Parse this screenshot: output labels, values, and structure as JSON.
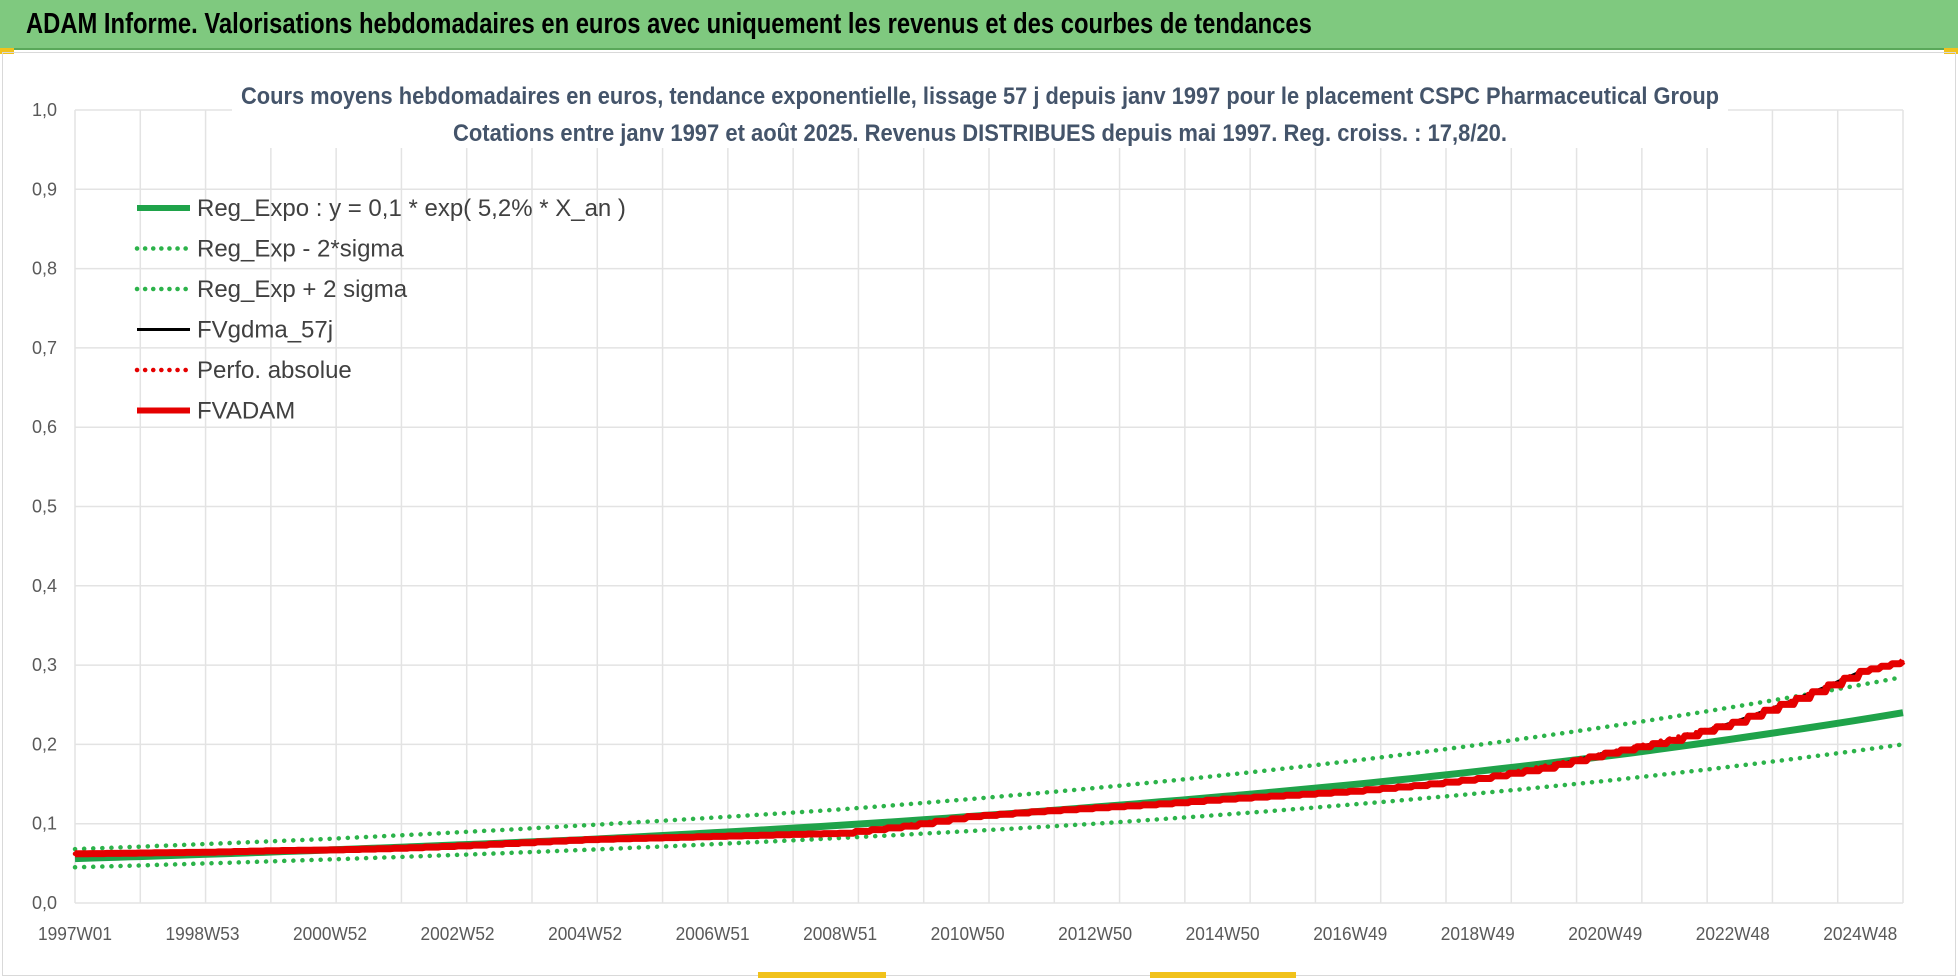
{
  "banner": {
    "title": "ADAM Informe. Valorisations hebdomadaires en euros avec uniquement les revenus et des courbes de tendances"
  },
  "colors": {
    "banner_bg": "#7fc97f",
    "reg_green": "#1fa34a",
    "band_green": "#2cb34a",
    "fv_black": "#000000",
    "adam_red": "#e50000",
    "grid": "#e3e3e3"
  },
  "chart_data": {
    "type": "line",
    "title_lines": [
      "Cours moyens hebdomadaires en euros, tendance exponentielle, lissage 57 j depuis janv 1997  pour le placement CSPC Pharmaceutical Group",
      "Cotations entre janv 1997 et août 2025.  Revenus DISTRIBUES depuis mai 1997. Reg. croiss. : 17,8/20."
    ],
    "ylim": [
      0,
      1.0
    ],
    "xlim": [
      1997.0,
      2025.67
    ],
    "y_ticks": [
      "0,0",
      "0,1",
      "0,2",
      "0,3",
      "0,4",
      "0,5",
      "0,6",
      "0,7",
      "0,8",
      "0,9",
      "1,0"
    ],
    "x_ticks": [
      {
        "label": "1997W01",
        "x": 1997.0
      },
      {
        "label": "1998W53",
        "x": 1999.0
      },
      {
        "label": "2000W52",
        "x": 2001.0
      },
      {
        "label": "2002W52",
        "x": 2003.0
      },
      {
        "label": "2004W52",
        "x": 2005.0
      },
      {
        "label": "2006W51",
        "x": 2007.0
      },
      {
        "label": "2008W51",
        "x": 2009.0
      },
      {
        "label": "2010W50",
        "x": 2011.0
      },
      {
        "label": "2012W50",
        "x": 2013.0
      },
      {
        "label": "2014W50",
        "x": 2015.0
      },
      {
        "label": "2016W49",
        "x": 2017.0
      },
      {
        "label": "2018W49",
        "x": 2019.0
      },
      {
        "label": "2020W49",
        "x": 2021.0
      },
      {
        "label": "2022W48",
        "x": 2023.0
      },
      {
        "label": "2024W48",
        "x": 2025.0
      }
    ],
    "legend_position": "top-left",
    "series": [
      {
        "name": "Reg_Expo : y = 0,1 * exp( 5,2% *  X_an )",
        "style": "solid-thick",
        "color": "#1fa34a",
        "x": [
          1997.0,
          2001.0,
          2005.0,
          2009.0,
          2013.0,
          2017.0,
          2021.0,
          2025.67
        ],
        "y": [
          0.056,
          0.067,
          0.08,
          0.098,
          0.121,
          0.149,
          0.185,
          0.24
        ]
      },
      {
        "name": "Reg_Exp - 2*sigma",
        "style": "dotted",
        "color": "#2cb34a",
        "x": [
          1997.0,
          2001.0,
          2005.0,
          2009.0,
          2013.0,
          2017.0,
          2021.0,
          2025.67
        ],
        "y": [
          0.045,
          0.055,
          0.067,
          0.082,
          0.1,
          0.124,
          0.154,
          0.2
        ]
      },
      {
        "name": "Reg_Exp + 2 sigma",
        "style": "dotted",
        "color": "#2cb34a",
        "x": [
          1997.0,
          2001.0,
          2005.0,
          2009.0,
          2013.0,
          2017.0,
          2021.0,
          2025.67
        ],
        "y": [
          0.068,
          0.081,
          0.098,
          0.118,
          0.145,
          0.179,
          0.222,
          0.285
        ]
      },
      {
        "name": "FVgdma_57j",
        "style": "solid-thin",
        "color": "#000000",
        "x": [
          1997.0,
          1999.0,
          2001.0,
          2003.0,
          2005.0,
          2007.0,
          2009.0,
          2010.0,
          2011.0,
          2013.0,
          2015.0,
          2017.0,
          2019.0,
          2020.0,
          2021.0,
          2022.0,
          2023.0,
          2024.0,
          2025.0,
          2025.67
        ],
        "y": [
          0.062,
          0.064,
          0.067,
          0.072,
          0.081,
          0.085,
          0.089,
          0.097,
          0.11,
          0.121,
          0.132,
          0.142,
          0.158,
          0.17,
          0.19,
          0.205,
          0.228,
          0.258,
          0.292,
          0.305
        ]
      },
      {
        "name": "Perfo. absolue",
        "style": "dotted",
        "color": "#e50000",
        "x": [
          1997.0,
          1999.0,
          2001.0,
          2003.0,
          2005.0,
          2007.0,
          2009.0,
          2011.0,
          2013.0,
          2015.0,
          2017.0,
          2019.0,
          2021.0,
          2023.0,
          2025.0,
          2025.67
        ],
        "y": [
          0.062,
          0.064,
          0.067,
          0.072,
          0.08,
          0.084,
          0.088,
          0.109,
          0.12,
          0.131,
          0.141,
          0.157,
          0.189,
          0.227,
          0.292,
          0.304
        ]
      },
      {
        "name": "FVADAM",
        "style": "step-thick",
        "color": "#e50000",
        "x": [
          1997.0,
          1998.0,
          1999.0,
          2000.0,
          2001.0,
          2002.0,
          2003.0,
          2004.0,
          2005.0,
          2006.0,
          2007.0,
          2008.0,
          2009.0,
          2010.0,
          2011.0,
          2012.0,
          2013.0,
          2014.0,
          2015.0,
          2016.0,
          2017.0,
          2018.0,
          2019.0,
          2020.0,
          2021.0,
          2022.0,
          2023.0,
          2024.0,
          2025.0,
          2025.67
        ],
        "y": [
          0.062,
          0.063,
          0.064,
          0.066,
          0.067,
          0.069,
          0.072,
          0.076,
          0.08,
          0.082,
          0.084,
          0.086,
          0.088,
          0.097,
          0.109,
          0.115,
          0.12,
          0.125,
          0.131,
          0.136,
          0.141,
          0.148,
          0.157,
          0.17,
          0.189,
          0.205,
          0.228,
          0.258,
          0.292,
          0.305
        ]
      }
    ]
  }
}
